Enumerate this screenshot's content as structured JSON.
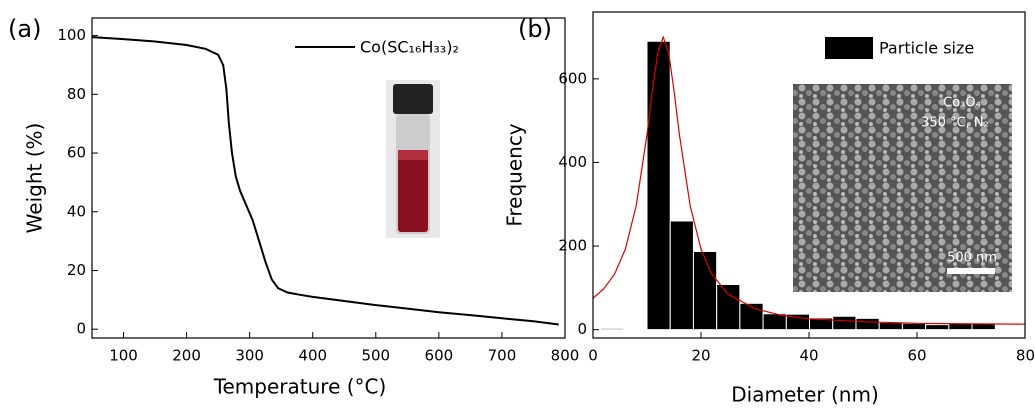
{
  "chart_data": [
    {
      "type": "line",
      "label": "(a)",
      "x_label": "Temperature (°C)",
      "y_label": "Weight (%)",
      "xlim": [
        50,
        800
      ],
      "ylim": [
        -3,
        106
      ],
      "xticks": [
        100,
        200,
        300,
        400,
        500,
        600,
        700,
        800
      ],
      "yticks": [
        0,
        20,
        40,
        60,
        80,
        100
      ],
      "x": [
        50,
        100,
        150,
        200,
        230,
        250,
        258,
        263,
        267,
        272,
        278,
        285,
        295,
        305,
        315,
        325,
        335,
        345,
        360,
        380,
        400,
        450,
        500,
        550,
        600,
        650,
        700,
        750,
        790
      ],
      "series": [
        {
          "name": "Co(SC₁₆H₃₃)₂",
          "color": "#000000",
          "values": [
            99.5,
            98.8,
            98,
            96.8,
            95.5,
            93.5,
            90,
            82,
            70,
            60,
            52,
            47,
            42,
            37,
            30,
            23,
            17,
            14,
            12.5,
            11.7,
            11,
            9.6,
            8.2,
            7,
            5.8,
            4.8,
            3.7,
            2.7,
            1.6
          ]
        }
      ]
    },
    {
      "type": "histogram",
      "label": "(b)",
      "x_label": "Diameter (nm)",
      "y_label": "Frequency",
      "xlim": [
        0,
        80
      ],
      "ylim": [
        -20,
        760
      ],
      "xticks": [
        0,
        20,
        40,
        60,
        80
      ],
      "yticks": [
        0,
        200,
        400,
        600
      ],
      "bins": [
        1.4,
        5.7,
        10,
        14.3,
        18.6,
        22.9,
        27.2,
        31.5,
        35.8,
        40.1,
        44.4,
        48.7,
        53,
        57.3,
        61.6,
        65.9,
        70.2,
        74.5
      ],
      "series": [
        {
          "name": "Particle size",
          "color": "#000000",
          "values": [
            3,
            0,
            690,
            260,
            187,
            108,
            63,
            38,
            37,
            28,
            32,
            27,
            17,
            15,
            12,
            15,
            15
          ]
        }
      ],
      "lines": [
        {
          "color": "#dd0000",
          "x": [
            0,
            2,
            4,
            6,
            8,
            10,
            11,
            12,
            13,
            14,
            15,
            16,
            18,
            20,
            22,
            25,
            30,
            35,
            40,
            50,
            60,
            70,
            80
          ],
          "values": [
            75,
            98,
            133,
            193,
            296,
            467,
            572,
            663,
            700,
            663,
            572,
            467,
            296,
            193,
            133,
            85,
            50,
            34,
            26,
            19,
            15,
            14,
            13
          ]
        }
      ],
      "annotations": [
        "Co₃O₄",
        "350 °C, N₂",
        "500 nm"
      ]
    }
  ]
}
